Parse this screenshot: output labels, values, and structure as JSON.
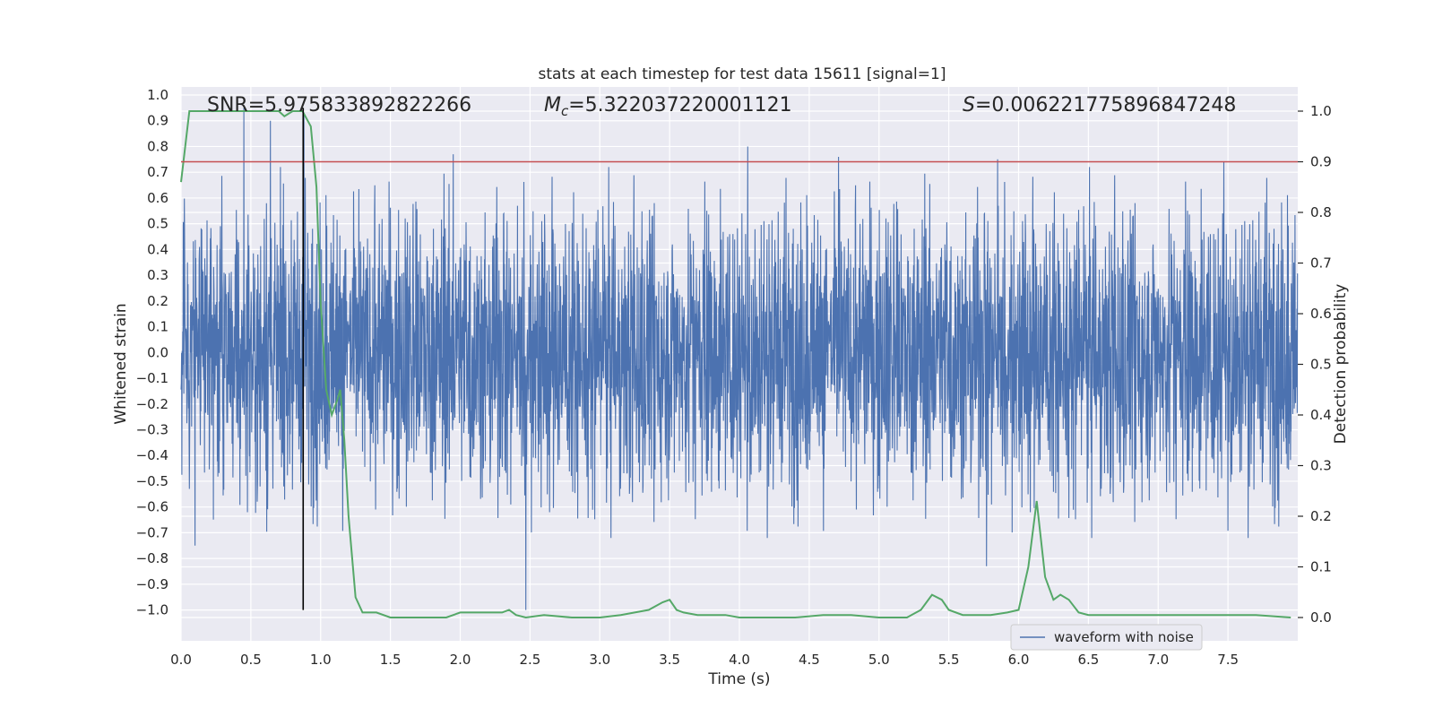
{
  "chart_data": {
    "type": "line",
    "title": "stats at each timestep for test data 15611 [signal=1]",
    "xlabel": "Time (s)",
    "ylabel_left": "Whitened strain",
    "ylabel_right": "Detection probability",
    "xlim": [
      0,
      8
    ],
    "ylim_left": [
      -1.1,
      1.05
    ],
    "ylim_right": [
      -0.05,
      1.03
    ],
    "x_ticks": [
      "0.0",
      "0.5",
      "1.0",
      "1.5",
      "2.0",
      "2.5",
      "3.0",
      "3.5",
      "4.0",
      "4.5",
      "5.0",
      "5.5",
      "6.0",
      "6.5",
      "7.0",
      "7.5"
    ],
    "y_left_ticks": [
      "1.0",
      "0.9",
      "0.8",
      "0.7",
      "0.6",
      "0.5",
      "0.4",
      "0.3",
      "0.2",
      "0.1",
      "0.0",
      "−0.1",
      "−0.2",
      "−0.3",
      "−0.4",
      "−0.5",
      "−0.6",
      "−0.7",
      "−0.8",
      "−0.9",
      "−1.0"
    ],
    "y_right_ticks": [
      "1.0",
      "0.9",
      "0.8",
      "0.7",
      "0.6",
      "0.5",
      "0.4",
      "0.3",
      "0.2",
      "0.1",
      "0.0"
    ],
    "grid": true,
    "threshold": {
      "y_right": 0.9,
      "color": "#c44e52"
    },
    "vline": {
      "x": 0.875,
      "color": "#000000"
    },
    "annotations": {
      "snr": "SNR=5.975833892822266",
      "mc_symbol": "M",
      "mc_sub": "c",
      "mc_value": "=5.322037220001121",
      "s_symbol": "S",
      "s_value": "=0.006221775896847248"
    },
    "series": [
      {
        "name": "waveform with noise",
        "axis": "left",
        "color": "#4c72b0",
        "description_values": "dense noisy strain between about -0.75 and 0.95",
        "extremes": [
          {
            "x": 0.45,
            "y": 0.95
          },
          {
            "x": 0.64,
            "y": 0.9
          },
          {
            "x": 0.88,
            "y": 0.93
          },
          {
            "x": 0.1,
            "y": -0.75
          },
          {
            "x": 1.95,
            "y": 0.77
          },
          {
            "x": 2.47,
            "y": -1.0
          },
          {
            "x": 4.06,
            "y": 0.8
          },
          {
            "x": 4.71,
            "y": 0.76
          },
          {
            "x": 5.77,
            "y": -0.83
          },
          {
            "x": 5.85,
            "y": 0.75
          },
          {
            "x": 7.47,
            "y": 0.74
          }
        ]
      },
      {
        "axis": "right",
        "color": "#55a868",
        "x": [
          0.0,
          0.06,
          0.12,
          0.2,
          0.3,
          0.4,
          0.5,
          0.6,
          0.7,
          0.74,
          0.8,
          0.87,
          0.93,
          0.97,
          1.0,
          1.04,
          1.08,
          1.12,
          1.14,
          1.17,
          1.2,
          1.25,
          1.3,
          1.4,
          1.5,
          1.6,
          1.7,
          1.8,
          1.9,
          2.0,
          2.1,
          2.2,
          2.3,
          2.35,
          2.4,
          2.47,
          2.6,
          2.8,
          3.0,
          3.15,
          3.25,
          3.35,
          3.45,
          3.5,
          3.55,
          3.6,
          3.7,
          3.8,
          3.9,
          4.0,
          4.2,
          4.4,
          4.6,
          4.7,
          4.8,
          5.0,
          5.2,
          5.3,
          5.38,
          5.45,
          5.5,
          5.6,
          5.8,
          5.92,
          6.0,
          6.07,
          6.13,
          6.19,
          6.25,
          6.3,
          6.36,
          6.43,
          6.5,
          6.7,
          6.9,
          7.1,
          7.3,
          7.5,
          7.7,
          7.95
        ],
        "y": [
          0.86,
          1.0,
          1.0,
          1.0,
          1.0,
          1.0,
          1.0,
          1.0,
          1.0,
          0.99,
          1.0,
          1.0,
          0.97,
          0.85,
          0.62,
          0.45,
          0.4,
          0.43,
          0.45,
          0.35,
          0.2,
          0.04,
          0.01,
          0.01,
          0.0,
          0.0,
          0.0,
          0.0,
          0.0,
          0.01,
          0.01,
          0.01,
          0.01,
          0.015,
          0.005,
          0.0,
          0.005,
          0.0,
          0.0,
          0.005,
          0.01,
          0.015,
          0.03,
          0.035,
          0.015,
          0.01,
          0.005,
          0.005,
          0.005,
          0.0,
          0.0,
          0.0,
          0.005,
          0.005,
          0.005,
          0.0,
          0.0,
          0.015,
          0.045,
          0.035,
          0.015,
          0.005,
          0.005,
          0.01,
          0.015,
          0.1,
          0.23,
          0.08,
          0.035,
          0.045,
          0.035,
          0.01,
          0.005,
          0.005,
          0.005,
          0.005,
          0.005,
          0.005,
          0.005,
          0.0
        ]
      }
    ],
    "legend": {
      "placement": "lower-center-right",
      "entries": [
        "waveform with noise"
      ]
    }
  }
}
